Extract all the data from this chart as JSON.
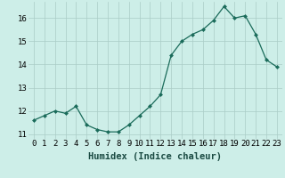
{
  "x": [
    0,
    1,
    2,
    3,
    4,
    5,
    6,
    7,
    8,
    9,
    10,
    11,
    12,
    13,
    14,
    15,
    16,
    17,
    18,
    19,
    20,
    21,
    22,
    23
  ],
  "y": [
    11.6,
    11.8,
    12.0,
    11.9,
    12.2,
    11.4,
    11.2,
    11.1,
    11.1,
    11.4,
    11.8,
    12.2,
    12.7,
    14.4,
    15.0,
    15.3,
    15.5,
    15.9,
    16.5,
    16.0,
    16.1,
    15.3,
    14.2,
    13.9
  ],
  "line_color": "#1a6b5a",
  "marker": "D",
  "marker_size": 2.5,
  "bg_color": "#cdeee8",
  "grid_color": "#aaccc6",
  "xlabel": "Humidex (Indice chaleur)",
  "ylim": [
    10.8,
    16.7
  ],
  "yticks": [
    11,
    12,
    13,
    14,
    15,
    16
  ],
  "xticks": [
    0,
    1,
    2,
    3,
    4,
    5,
    6,
    7,
    8,
    9,
    10,
    11,
    12,
    13,
    14,
    15,
    16,
    17,
    18,
    19,
    20,
    21,
    22,
    23
  ],
  "xlabel_fontsize": 7.5,
  "tick_fontsize": 6.5
}
